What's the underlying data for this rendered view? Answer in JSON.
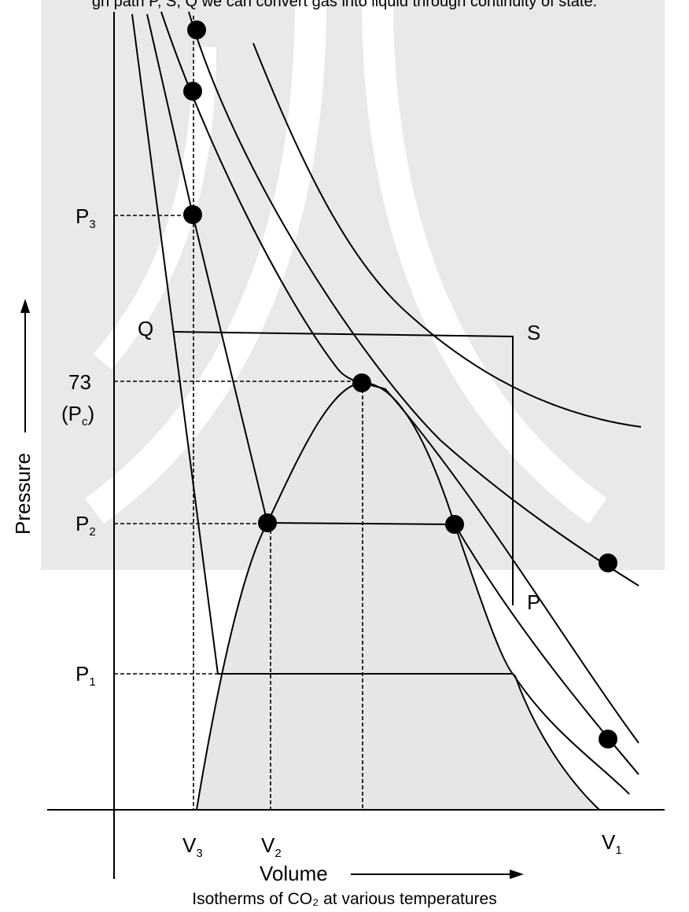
{
  "header": {
    "caption": "gh path P, S, Q we can convert gas into liquid through continuity of state."
  },
  "labels": {
    "p3": {
      "main": "P",
      "sub": "3"
    },
    "q": "Q",
    "s": "S",
    "critical_value": "73",
    "pc": {
      "open": "(P",
      "sub": "c",
      "close": ")"
    },
    "p2": {
      "main": "P",
      "sub": "2"
    },
    "p": "P",
    "p1": {
      "main": "P",
      "sub": "1"
    },
    "v3": {
      "main": "V",
      "sub": "3"
    },
    "v2": {
      "main": "V",
      "sub": "2"
    },
    "v1": {
      "main": "V",
      "sub": "1"
    }
  },
  "axes": {
    "y_label": "Pressure",
    "x_label": "Volume"
  },
  "footer": {
    "caption": "Isotherms of CO₂ at various temperatures"
  }
}
